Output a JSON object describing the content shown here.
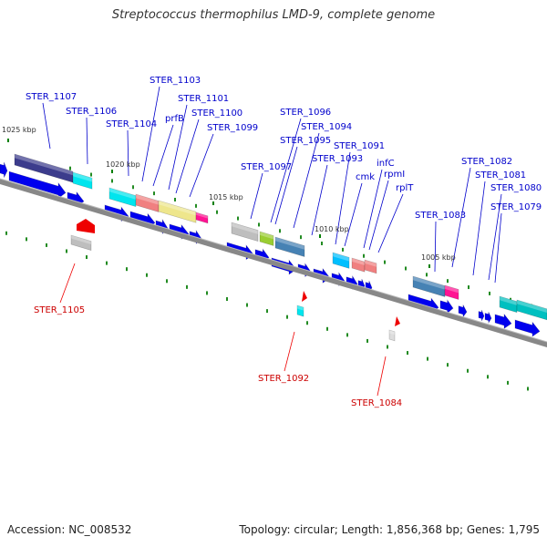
{
  "title": "Streptococcus thermophilus LMD-9, complete genome",
  "footer": {
    "accession": "Accession: NC_008532",
    "stats": "Topology: circular; Length: 1,856,368 bp; Genes: 1,795"
  },
  "colors": {
    "forward_gene": "#0000ee",
    "reverse_gene": "#ee0000",
    "backbone": "#888888",
    "label_line": "#0000cc"
  },
  "kbp_labels": [
    "1025 kbp",
    "1020 kbp",
    "1015 kbp",
    "1010 kbp",
    "1005 kbp"
  ],
  "forward_labels": [
    "STER_1107",
    "STER_1106",
    "STER_1104",
    "STER_1103",
    "prfB",
    "STER_1101",
    "STER_1100",
    "STER_1099",
    "STER_1097",
    "STER_1096",
    "STER_1095",
    "STER_1094",
    "STER_1093",
    "STER_1091",
    "cmk",
    "infC",
    "rpmI",
    "rplT",
    "STER_1083",
    "STER_1082",
    "STER_1081",
    "STER_1080",
    "STER_1079"
  ],
  "reverse_labels": [
    "STER_1105",
    "STER_1092",
    "STER_1084"
  ]
}
